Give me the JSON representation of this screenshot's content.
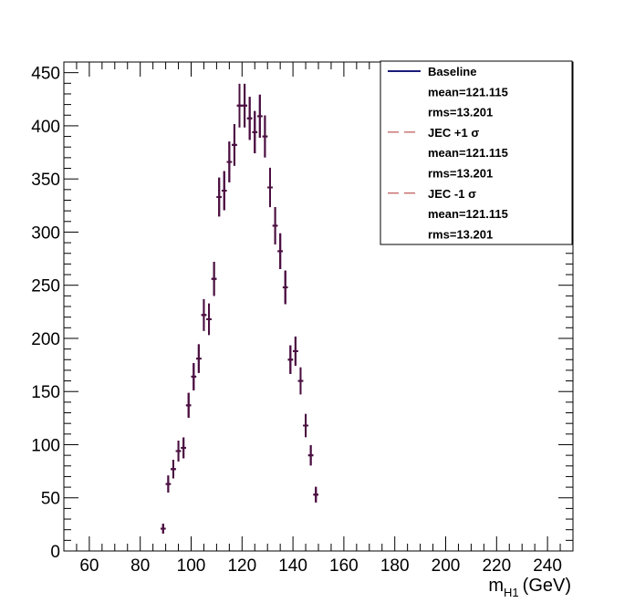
{
  "chart_data": {
    "type": "scatter",
    "style": "histogram-with-error-bars",
    "x_title": "m",
    "x_title_sub": "H1",
    "x_title_unit": "(GeV)",
    "xlim": [
      50,
      250
    ],
    "ylim": [
      0,
      460
    ],
    "x_ticks": [
      "60",
      "80",
      "100",
      "120",
      "140",
      "160",
      "180",
      "200",
      "220",
      "240"
    ],
    "y_ticks": [
      "0",
      "50",
      "100",
      "150",
      "200",
      "250",
      "300",
      "350",
      "400",
      "450"
    ],
    "bin_width": 2,
    "grid": false,
    "legend_position": "top-right",
    "series": [
      {
        "name": "Baseline",
        "color": "#1a1a7a",
        "line": "solid",
        "x": [
          89,
          91,
          93,
          95,
          97,
          99,
          101,
          103,
          105,
          107,
          109,
          111,
          113,
          115,
          117,
          119,
          121,
          123,
          125,
          127,
          129,
          131,
          133,
          135,
          137,
          139,
          141,
          143,
          145,
          147,
          149
        ],
        "values": [
          21,
          63,
          77,
          94,
          97,
          137,
          164,
          181,
          222,
          218,
          256,
          333,
          339,
          366,
          382,
          419,
          419,
          407,
          394,
          409,
          390,
          342,
          306,
          282,
          248,
          180,
          188,
          160,
          118,
          90,
          53
        ]
      },
      {
        "name": "JEC +1 σ",
        "color": "#b03030",
        "line": "dashed",
        "x": [
          89,
          91,
          93,
          95,
          97,
          99,
          101,
          103,
          105,
          107,
          109,
          111,
          113,
          115,
          117,
          119,
          121,
          123,
          125,
          127,
          129,
          131,
          133,
          135,
          137,
          139,
          141,
          143,
          145,
          147,
          149
        ],
        "values": [
          21,
          63,
          77,
          94,
          97,
          137,
          164,
          181,
          222,
          218,
          256,
          333,
          339,
          366,
          382,
          419,
          419,
          407,
          394,
          409,
          390,
          342,
          306,
          282,
          248,
          180,
          188,
          160,
          118,
          90,
          53
        ]
      },
      {
        "name": "JEC -1 σ",
        "color": "#b03030",
        "line": "dashed",
        "x": [
          89,
          91,
          93,
          95,
          97,
          99,
          101,
          103,
          105,
          107,
          109,
          111,
          113,
          115,
          117,
          119,
          121,
          123,
          125,
          127,
          129,
          131,
          133,
          135,
          137,
          139,
          141,
          143,
          145,
          147,
          149
        ],
        "values": [
          21,
          63,
          77,
          94,
          97,
          137,
          164,
          181,
          222,
          218,
          256,
          333,
          339,
          366,
          382,
          419,
          419,
          407,
          394,
          409,
          390,
          342,
          306,
          282,
          248,
          180,
          188,
          160,
          118,
          90,
          53
        ]
      }
    ],
    "legend": [
      {
        "label": "Baseline",
        "color": "#1a1a7a",
        "line": "solid"
      },
      {
        "label": "mean=121.115"
      },
      {
        "label": "rms=13.201"
      },
      {
        "label": "JEC +1 σ",
        "color": "#b03030",
        "line": "dashed"
      },
      {
        "label": "mean=121.115"
      },
      {
        "label": "rms=13.201"
      },
      {
        "label": "JEC -1 σ",
        "color": "#b03030",
        "line": "dashed"
      },
      {
        "label": "mean=121.115"
      },
      {
        "label": "rms=13.201"
      }
    ]
  }
}
